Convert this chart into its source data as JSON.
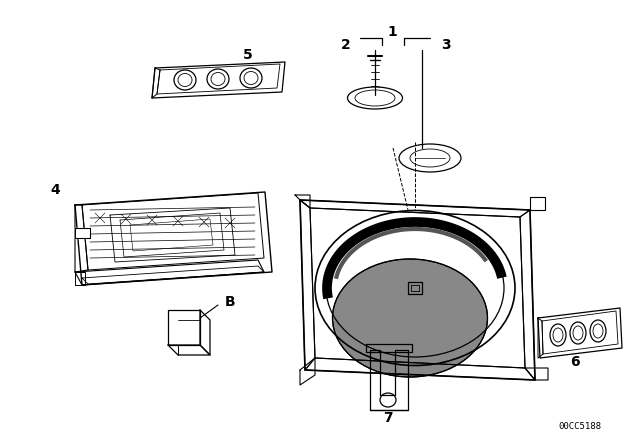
{
  "bg_color": "#ffffff",
  "line_color": "#000000",
  "fig_width": 6.4,
  "fig_height": 4.48,
  "dpi": 100,
  "watermark": "00CC5188"
}
